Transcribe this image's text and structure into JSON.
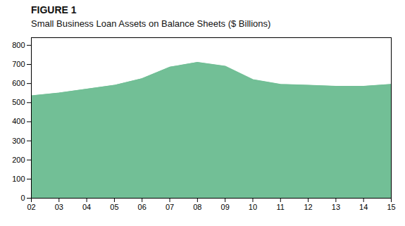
{
  "chart_data": {
    "type": "area",
    "title": "FIGURE 1",
    "subtitle": "Small Business Loan Assets on Balance Sheets ($ Billions)",
    "x": [
      2,
      3,
      4,
      5,
      6,
      7,
      8,
      9,
      10,
      11,
      12,
      13,
      14,
      15
    ],
    "values": [
      535,
      550,
      570,
      590,
      625,
      685,
      710,
      690,
      620,
      595,
      590,
      585,
      585,
      595
    ],
    "color": "#72bf96",
    "xlim": [
      2,
      15
    ],
    "xticks": [
      {
        "value": 2,
        "label": "02"
      },
      {
        "value": 3,
        "label": "03"
      },
      {
        "value": 4,
        "label": "04"
      },
      {
        "value": 5,
        "label": "05"
      },
      {
        "value": 6,
        "label": "06"
      },
      {
        "value": 7,
        "label": "07"
      },
      {
        "value": 8,
        "label": "08"
      },
      {
        "value": 9,
        "label": "09"
      },
      10,
      11,
      12,
      13,
      14,
      15
    ],
    "ylim": [
      0,
      840
    ],
    "yticks": [
      0,
      100,
      200,
      300,
      400,
      500,
      600,
      700,
      800
    ],
    "grid": false
  }
}
